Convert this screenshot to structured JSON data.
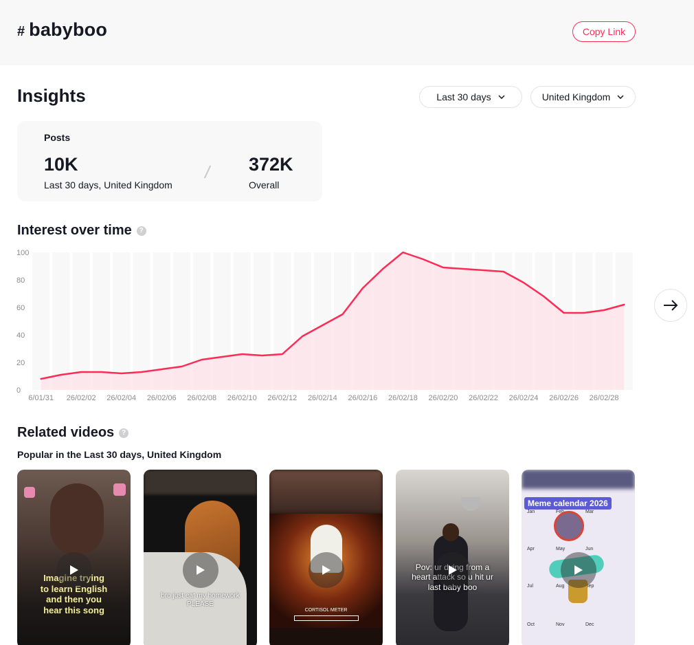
{
  "header": {
    "hash_symbol": "#",
    "tag": "babyboo",
    "copy_link": "Copy Link"
  },
  "insights": {
    "title": "Insights",
    "range_dropdown": "Last 30 days",
    "region_dropdown": "United Kingdom"
  },
  "posts": {
    "label": "Posts",
    "recent_value": "10K",
    "recent_caption": "Last 30 days, United Kingdom",
    "overall_value": "372K",
    "overall_caption": "Overall"
  },
  "interest": {
    "title": "Interest over time"
  },
  "chart_data": {
    "type": "area",
    "y_ticks": [
      100,
      80,
      60,
      40,
      20,
      0
    ],
    "ylim": [
      0,
      100
    ],
    "x_tick_labels": [
      "6/01/31",
      "26/02/02",
      "26/02/04",
      "26/02/06",
      "26/02/08",
      "26/02/10",
      "26/02/12",
      "26/02/14",
      "26/02/16",
      "26/02/18",
      "26/02/20",
      "26/02/22",
      "26/02/24",
      "26/02/26",
      "26/02/28"
    ],
    "values": [
      8,
      11,
      13,
      13,
      12,
      13,
      15,
      17,
      22,
      24,
      26,
      25,
      26,
      39,
      47,
      55,
      74,
      88,
      100,
      95,
      89,
      88,
      87,
      86,
      78,
      68,
      56,
      56,
      58,
      62
    ],
    "line_color": "#fe2c55",
    "fill_color": "#fde3e8",
    "band_color": "#f8f8f8",
    "grid": false,
    "legend": "none"
  },
  "related": {
    "title": "Related videos",
    "subtitle": "Popular in the Last 30 days, United Kingdom",
    "videos": [
      {
        "caption": "Imagine trying\nto learn English\nand then you\nhear this song"
      },
      {
        "caption": "bro just eat my homework\nPLEASE"
      },
      {
        "caption": "CORTISOL METER"
      },
      {
        "caption": "Pov: ur dying from a\nheart attack so u hit ur\nlast baby boo"
      },
      {
        "caption": "Meme calendar 2026",
        "months": [
          "Jan",
          "Feb",
          "Mar",
          "Apr",
          "May",
          "Jun",
          "Jul",
          "Aug",
          "Sep",
          "Oct",
          "Nov",
          "Dec"
        ]
      }
    ]
  }
}
